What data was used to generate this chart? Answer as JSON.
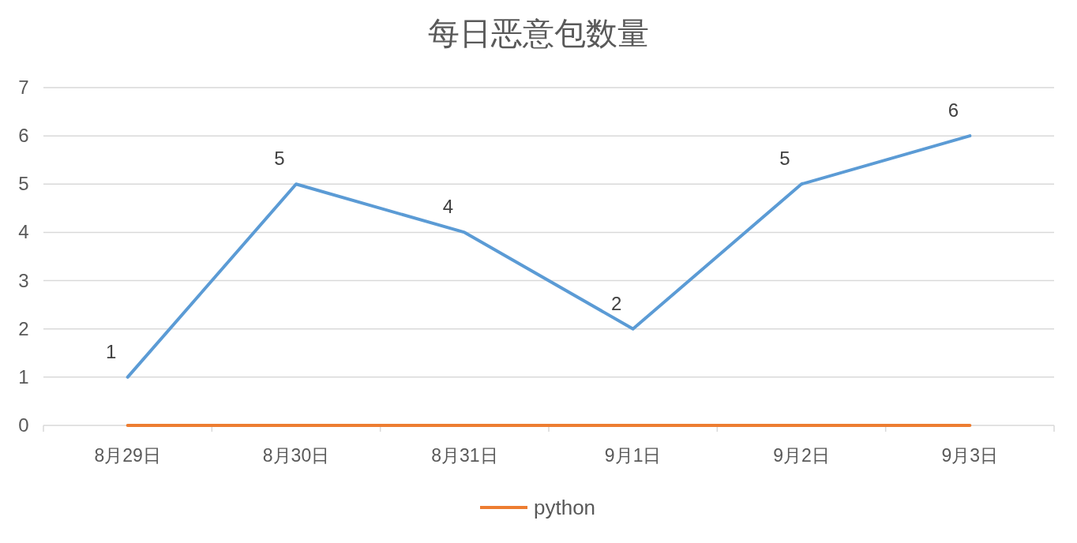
{
  "chart_data": {
    "type": "line",
    "title": "每日恶意包数量",
    "categories": [
      "8月29日",
      "8月30日",
      "8月31日",
      "9月1日",
      "9月2日",
      "9月3日"
    ],
    "series": [
      {
        "color": "#5b9bd5",
        "values": [
          1,
          5,
          4,
          2,
          5,
          6
        ],
        "value_labels": [
          "1",
          "5",
          "4",
          "2",
          "5",
          "6"
        ]
      },
      {
        "name": "python",
        "color": "#ed7d31",
        "values": [
          0,
          0,
          0,
          0,
          0,
          0
        ]
      }
    ],
    "ylim": [
      0,
      7
    ],
    "yticks": [
      0,
      1,
      2,
      3,
      4,
      5,
      6,
      7
    ],
    "grid": "y",
    "legend": "bottom",
    "marker": "none",
    "line_style": "solid"
  }
}
